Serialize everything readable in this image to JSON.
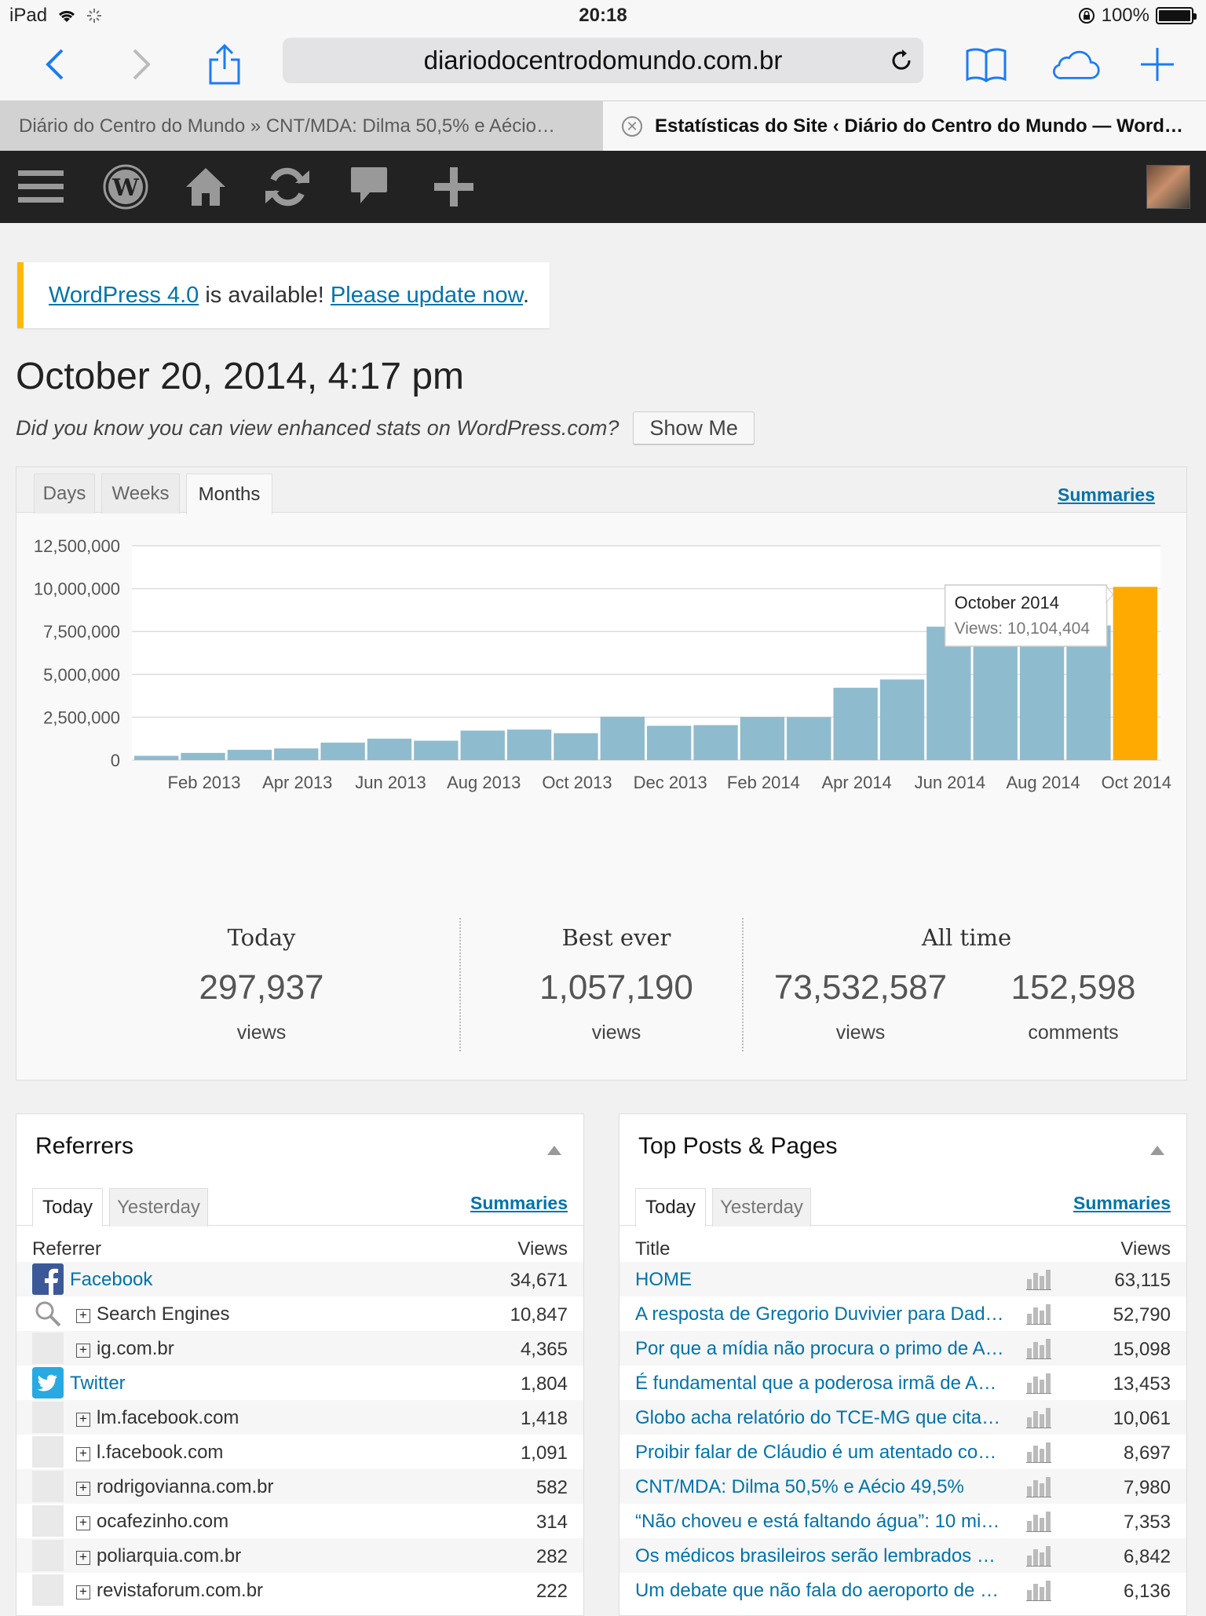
{
  "status_bar": {
    "device": "iPad",
    "time": "20:18",
    "battery": "100%"
  },
  "browser": {
    "url": "diariodocentrodomundo.com.br",
    "tabs": [
      {
        "title": "Diário do Centro do Mundo » CNT/MDA: Dilma 50,5% e Aécio…"
      },
      {
        "title": "Estatísticas do Site ‹ Diário do Centro do Mundo — WordP…"
      }
    ]
  },
  "admin_bar": {
    "icons": [
      "menu-icon",
      "wordpress-icon",
      "home-icon",
      "refresh-icon",
      "comment-icon",
      "plus-icon",
      "avatar"
    ]
  },
  "notice": {
    "link1": "WordPress 4.0",
    "middle": " is available! ",
    "link2": "Please update now",
    "end": "."
  },
  "page": {
    "title": "October 20, 2014, 4:17 pm",
    "hint": "Did you know you can view enhanced stats on WordPress.com?",
    "show_me": "Show Me"
  },
  "stats_panel": {
    "tabs": [
      "Days",
      "Weeks",
      "Months"
    ],
    "selected_tab": "Months",
    "summaries": "Summaries",
    "today": {
      "label": "Today",
      "value": "297,937",
      "unit": "views"
    },
    "best": {
      "label": "Best ever",
      "value": "1,057,190",
      "unit": "views"
    },
    "all_time": {
      "label": "All time",
      "views": "73,532,587",
      "views_unit": "views",
      "comments": "152,598",
      "comments_unit": "comments"
    }
  },
  "chart_data": {
    "type": "bar",
    "y_ticks": [
      "12,500,000",
      "10,000,000",
      "7,500,000",
      "5,000,000",
      "2,500,000",
      "0"
    ],
    "ylim": [
      0,
      12500000
    ],
    "x_tick_labels": [
      "Feb 2013",
      "Apr 2013",
      "Jun 2013",
      "Aug 2013",
      "Oct 2013",
      "Dec 2013",
      "Feb 2014",
      "Apr 2014",
      "Jun 2014",
      "Aug 2014",
      "Oct 2014"
    ],
    "categories": [
      "Jan 2013",
      "Feb 2013",
      "Mar 2013",
      "Apr 2013",
      "May 2013",
      "Jun 2013",
      "Jul 2013",
      "Aug 2013",
      "Sep 2013",
      "Oct 2013",
      "Nov 2013",
      "Dec 2013",
      "Jan 2014",
      "Feb 2014",
      "Mar 2014",
      "Apr 2014",
      "May 2014",
      "Jun 2014",
      "Jul 2014",
      "Aug 2014",
      "Sep 2014",
      "Oct 2014"
    ],
    "values": [
      250000,
      420000,
      600000,
      680000,
      1020000,
      1250000,
      1130000,
      1720000,
      1780000,
      1570000,
      2530000,
      2000000,
      2040000,
      2520000,
      2510000,
      4220000,
      4700000,
      7780000,
      7850000,
      7780000,
      7850000,
      10104404
    ],
    "highlight_index": 21,
    "bar_color": "#8fbbce",
    "highlight_color": "#ffaa00",
    "tooltip": {
      "title": "October 2014",
      "text": "Views: 10,104,404"
    }
  },
  "referrers": {
    "title": "Referrers",
    "tabs": [
      "Today",
      "Yesterday"
    ],
    "summaries": "Summaries",
    "col_left": "Referrer",
    "col_right": "Views",
    "rows": [
      {
        "name": "Facebook",
        "views": "34,671",
        "icon": "facebook-icon"
      },
      {
        "name": "Search Engines",
        "views": "10,847",
        "icon": "search-icon"
      },
      {
        "name": "ig.com.br",
        "views": "4,365",
        "icon": "blank"
      },
      {
        "name": "Twitter",
        "views": "1,804",
        "icon": "twitter-icon"
      },
      {
        "name": "lm.facebook.com",
        "views": "1,418",
        "icon": "blank"
      },
      {
        "name": "l.facebook.com",
        "views": "1,091",
        "icon": "blank"
      },
      {
        "name": "rodrigovianna.com.br",
        "views": "582",
        "icon": "blank"
      },
      {
        "name": "ocafezinho.com",
        "views": "314",
        "icon": "blank"
      },
      {
        "name": "poliarquia.com.br",
        "views": "282",
        "icon": "blank"
      },
      {
        "name": "revistaforum.com.br",
        "views": "222",
        "icon": "blank"
      }
    ]
  },
  "top_posts": {
    "title": "Top Posts & Pages",
    "tabs": [
      "Today",
      "Yesterday"
    ],
    "summaries": "Summaries",
    "col_left": "Title",
    "col_right": "Views",
    "rows": [
      {
        "title": "HOME",
        "views": "63,115"
      },
      {
        "title": "A resposta de Gregorio Duvivier para Dad…",
        "views": "52,790"
      },
      {
        "title": "Por que a mídia não procura o primo de A…",
        "views": "15,098"
      },
      {
        "title": "É fundamental que a poderosa irmã de Aé…",
        "views": "13,453"
      },
      {
        "title": "Globo acha relatório do TCE-MG que cita “…",
        "views": "10,061"
      },
      {
        "title": "Proibir falar de Cláudio é um atentado co…",
        "views": "8,697"
      },
      {
        "title": "CNT/MDA: Dilma 50,5% e Aécio 49,5%",
        "views": "7,980"
      },
      {
        "title": "“Não choveu e está faltando água”: 10 mit…",
        "views": "7,353"
      },
      {
        "title": "Os médicos brasileiros serão lembrados p…",
        "views": "6,842"
      },
      {
        "title": "Um debate que não fala do aeroporto de …",
        "views": "6,136"
      }
    ]
  }
}
